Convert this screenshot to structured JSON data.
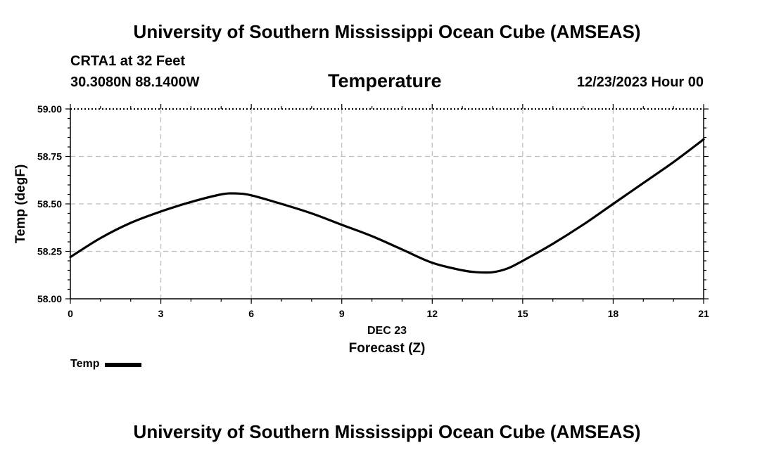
{
  "header": {
    "org_title": "University of Southern Mississippi Ocean Cube (AMSEAS)",
    "station": "CRTA1 at 32 Feet",
    "coords": "30.3080N  88.1400W",
    "variable": "Temperature",
    "date": "12/23/2023 Hour 00"
  },
  "footer": {
    "org_title": "University of Southern Mississippi Ocean Cube (AMSEAS)"
  },
  "legend": {
    "label": "Temp"
  },
  "chart_data": {
    "type": "line",
    "title": "Temperature",
    "xlabel": "Forecast (Z)",
    "xlabel_date": "DEC 23",
    "ylabel": "Temp (degF)",
    "xlim": [
      0,
      21
    ],
    "ylim": [
      58.0,
      59.0
    ],
    "x_ticks": [
      0,
      3,
      6,
      9,
      12,
      15,
      18,
      21
    ],
    "x_tick_labels": [
      "0",
      "3",
      "6",
      "9",
      "12",
      "15",
      "18",
      "21"
    ],
    "y_ticks": [
      58.0,
      58.25,
      58.5,
      58.75,
      59.0
    ],
    "y_tick_labels": [
      "58.00",
      "58.25",
      "58.50",
      "58.75",
      "59.00"
    ],
    "grid": true,
    "legend_position": "bottom-left",
    "series": [
      {
        "name": "Temp",
        "color": "#000000",
        "x": [
          0,
          1,
          2,
          3,
          4,
          5,
          5.5,
          6,
          7,
          8,
          9,
          10,
          11,
          12,
          13,
          13.5,
          14,
          14.5,
          15,
          16,
          17,
          18,
          19,
          20,
          21
        ],
        "y": [
          58.22,
          58.32,
          58.4,
          58.46,
          58.51,
          58.55,
          58.555,
          58.545,
          58.5,
          58.45,
          58.39,
          58.33,
          58.26,
          58.19,
          58.15,
          58.14,
          58.14,
          58.16,
          58.2,
          58.29,
          58.39,
          58.5,
          58.61,
          58.72,
          58.84
        ]
      }
    ]
  }
}
